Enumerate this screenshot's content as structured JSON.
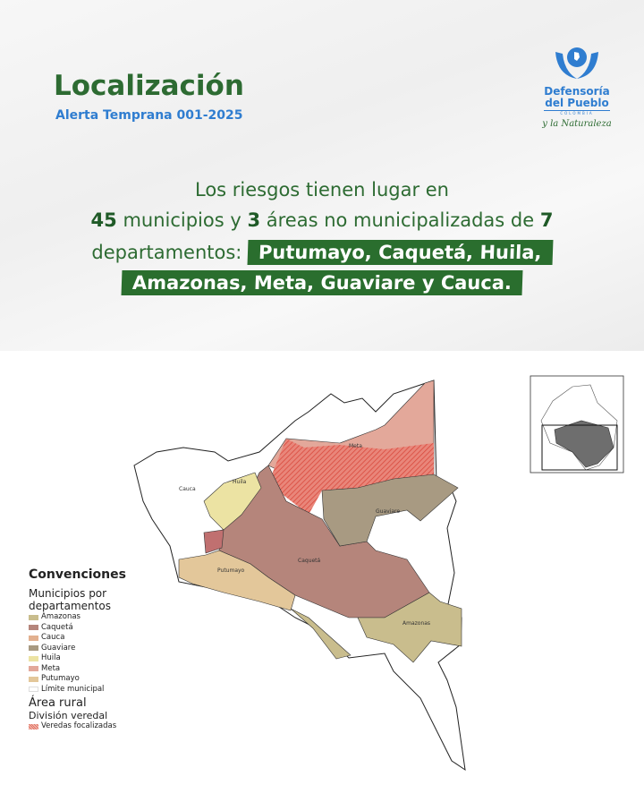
{
  "header": {
    "title": "Localización",
    "subtitle": "Alerta Temprana 001-2025"
  },
  "logo": {
    "line1": "Defensoría",
    "line2": "del Pueblo",
    "country": "COLOMBIA",
    "tagline": "y la Naturaleza"
  },
  "lead": {
    "line1": "Los riesgos tienen lugar en",
    "num_municipios": "45",
    "municipios_text": " municipios y ",
    "num_areas": "3",
    "areas_text": " áreas no municipalizadas de ",
    "num_deptos": "7",
    "line3": "departamentos:",
    "highlight1": "Putumayo, Caquetá, Huila,",
    "highlight2": "Amazonas, Meta, Guaviare y Cauca."
  },
  "map": {
    "labels": {
      "cauca": "Cauca",
      "huila": "Huila",
      "meta": "Meta",
      "guaviare": "Guaviare",
      "caqueta": "Caquetá",
      "putumayo": "Putumayo",
      "amazonas": "Amazonas"
    }
  },
  "legend": {
    "title": "Convenciones",
    "group": "Municipios por departamentos",
    "items": [
      {
        "label": "Amazonas",
        "color": "#c9bd8d"
      },
      {
        "label": "Caquetá",
        "color": "#b5857b"
      },
      {
        "label": "Cauca",
        "color": "#e2b08f"
      },
      {
        "label": "Guaviare",
        "color": "#a89a82"
      },
      {
        "label": "Huila",
        "color": "#ece3a3"
      },
      {
        "label": "Meta",
        "color": "#e3a89a"
      },
      {
        "label": "Putumayo",
        "color": "#e3c79a"
      },
      {
        "label": "Límite municipal",
        "color": "#ffffff"
      }
    ],
    "rural": "Área rural",
    "division": "División veredal",
    "veredas": "Veredas focalizadas"
  },
  "colors": {
    "green": "#2d6b32",
    "blue": "#2f7dd0",
    "hatch": "#e0584a"
  }
}
